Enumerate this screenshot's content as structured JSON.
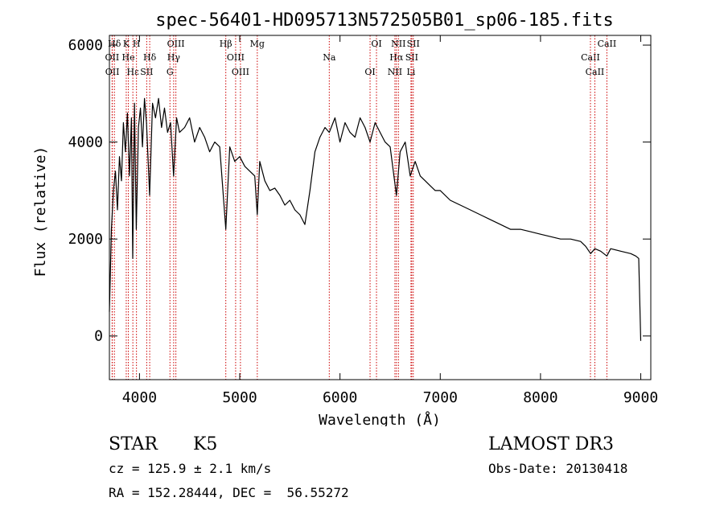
{
  "chart_data": {
    "type": "line",
    "title": "spec-56401-HD095713N572505B01_sp06-185.fits",
    "xlabel": "Wavelength (Å)",
    "ylabel": "Flux (relative)",
    "xlim": [
      3700,
      9100
    ],
    "ylim": [
      -900,
      6200
    ],
    "x_ticks": [
      4000,
      5000,
      6000,
      7000,
      8000,
      9000
    ],
    "y_ticks": [
      0,
      2000,
      4000,
      6000
    ],
    "line_color": "#000000",
    "marker_color": "#cc0000",
    "series": [
      {
        "name": "flux",
        "x": [
          3700,
          3720,
          3740,
          3760,
          3780,
          3800,
          3820,
          3840,
          3860,
          3880,
          3900,
          3920,
          3933,
          3950,
          3968,
          3990,
          4010,
          4030,
          4050,
          4070,
          4101,
          4130,
          4160,
          4190,
          4220,
          4250,
          4280,
          4310,
          4340,
          4370,
          4400,
          4450,
          4500,
          4550,
          4600,
          4650,
          4700,
          4750,
          4800,
          4861,
          4900,
          4950,
          5000,
          5050,
          5100,
          5150,
          5175,
          5200,
          5250,
          5300,
          5350,
          5400,
          5450,
          5500,
          5550,
          5600,
          5650,
          5700,
          5750,
          5800,
          5850,
          5893,
          5950,
          6000,
          6050,
          6100,
          6150,
          6200,
          6250,
          6300,
          6350,
          6400,
          6450,
          6500,
          6563,
          6600,
          6650,
          6700,
          6750,
          6800,
          6850,
          6900,
          6950,
          7000,
          7100,
          7200,
          7300,
          7400,
          7500,
          7600,
          7700,
          7800,
          7900,
          8000,
          8100,
          8200,
          8300,
          8400,
          8450,
          8500,
          8542,
          8600,
          8662,
          8700,
          8800,
          8900,
          8950,
          8980,
          9000
        ],
        "y": [
          500,
          2200,
          3000,
          3400,
          2600,
          3700,
          3200,
          4400,
          3800,
          4600,
          3300,
          4500,
          1600,
          4800,
          2200,
          4300,
          4700,
          3900,
          4900,
          4400,
          2900,
          4800,
          4500,
          4900,
          4300,
          4700,
          4200,
          4400,
          3300,
          4500,
          4200,
          4300,
          4500,
          4000,
          4300,
          4100,
          3800,
          4000,
          3900,
          2200,
          3900,
          3600,
          3700,
          3500,
          3400,
          3300,
          2500,
          3600,
          3200,
          3000,
          3050,
          2900,
          2700,
          2800,
          2600,
          2500,
          2300,
          3000,
          3800,
          4100,
          4300,
          4200,
          4500,
          4000,
          4400,
          4200,
          4100,
          4500,
          4300,
          4000,
          4400,
          4200,
          4000,
          3900,
          2900,
          3800,
          4000,
          3300,
          3600,
          3300,
          3200,
          3100,
          3000,
          3000,
          2800,
          2700,
          2600,
          2500,
          2400,
          2300,
          2200,
          2200,
          2150,
          2100,
          2050,
          2000,
          2000,
          1950,
          1850,
          1700,
          1800,
          1750,
          1650,
          1800,
          1750,
          1700,
          1650,
          1600,
          -100
        ]
      }
    ],
    "lines": [
      {
        "label": "Hδ",
        "x": 3750
      },
      {
        "label": "OII",
        "x": 3727
      },
      {
        "label": "OII",
        "x": 3729
      },
      {
        "label": "K",
        "x": 3868
      },
      {
        "label": "He",
        "x": 3889
      },
      {
        "label": "Hε",
        "x": 3934
      },
      {
        "label": "H",
        "x": 3970
      },
      {
        "label": "Hδ",
        "x": 4102
      },
      {
        "label": "SII",
        "x": 4072
      },
      {
        "label": "OIII",
        "x": 4363
      },
      {
        "label": "Hγ",
        "x": 4341
      },
      {
        "label": "G",
        "x": 4304
      },
      {
        "label": "Hβ",
        "x": 4861
      },
      {
        "label": "OIII",
        "x": 4959
      },
      {
        "label": "OIII",
        "x": 5007
      },
      {
        "label": "Mg",
        "x": 5175
      },
      {
        "label": "Na",
        "x": 5893
      },
      {
        "label": "OI",
        "x": 6300
      },
      {
        "label": "OI",
        "x": 6364
      },
      {
        "label": "Hα",
        "x": 6563
      },
      {
        "label": "NII",
        "x": 6548
      },
      {
        "label": "NII",
        "x": 6583
      },
      {
        "label": "SII",
        "x": 6716
      },
      {
        "label": "Li",
        "x": 6708
      },
      {
        "label": "SII",
        "x": 6731
      },
      {
        "label": "CaII",
        "x": 8498
      },
      {
        "label": "CaII",
        "x": 8542
      },
      {
        "label": "CaII",
        "x": 8662
      }
    ]
  },
  "info": {
    "object_class": "STAR",
    "subclass": "K5",
    "survey": "LAMOST DR3",
    "redshift": "cz = 125.9 ± 2.1 km/s",
    "obs_date": "Obs-Date: 20130418",
    "coordinates": "RA = 152.28444, DEC =  56.55272"
  }
}
